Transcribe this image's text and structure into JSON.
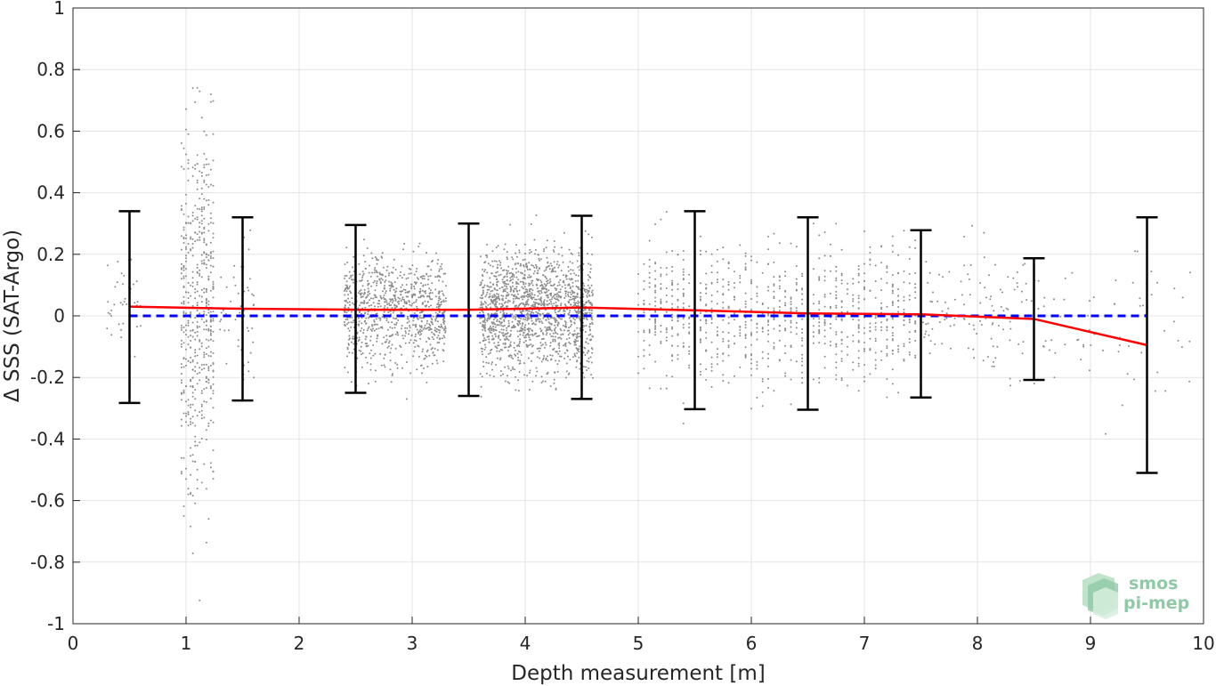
{
  "chart_data": {
    "type": "scatter",
    "title": "",
    "xlabel": "Depth measurement [m]",
    "ylabel": "Δ SSS (SAT-Argo)",
    "xlim": [
      0,
      10
    ],
    "ylim": [
      -1,
      1
    ],
    "xticks": [
      "0",
      "1",
      "2",
      "3",
      "4",
      "5",
      "6",
      "7",
      "8",
      "9",
      "10"
    ],
    "yticks": [
      "-1",
      "-0.8",
      "-0.6",
      "-0.4",
      "-0.2",
      "0",
      "0.2",
      "0.4",
      "0.6",
      "0.8",
      "1"
    ],
    "grid": true,
    "colors": {
      "scatter": "#8c8c8c",
      "mean_line": "#ff0000",
      "zero_line": "#0000ff",
      "errorbar": "#000000",
      "logo": "#8fc9a6"
    },
    "scatter_clusters": [
      {
        "x_range": [
          0.3,
          0.6
        ],
        "y_center": 0.03,
        "y_spread": 0.3,
        "columns": false
      },
      {
        "x_range": [
          0.95,
          1.25
        ],
        "y_center": 0.02,
        "y_spread": 0.95,
        "columns": true
      },
      {
        "x_range": [
          1.3,
          1.6
        ],
        "y_center": 0.02,
        "y_spread": 0.3,
        "columns": false
      },
      {
        "x_range": [
          2.4,
          3.3
        ],
        "y_center": 0.02,
        "y_spread": 0.28,
        "columns": false
      },
      {
        "x_range": [
          3.6,
          4.6
        ],
        "y_center": 0.02,
        "y_spread": 0.3,
        "columns": false
      },
      {
        "x_range": [
          5.0,
          7.5
        ],
        "y_center": 0.01,
        "y_spread": 0.35,
        "columns": true
      },
      {
        "x_range": [
          7.5,
          8.6
        ],
        "y_center": 0.0,
        "y_spread": 0.3,
        "columns": false
      },
      {
        "x_range": [
          8.6,
          9.9
        ],
        "y_center": -0.05,
        "y_spread": 0.4,
        "columns": false
      }
    ],
    "series": [
      {
        "type": "line",
        "x": [
          0.5,
          1.5,
          2.5,
          3.5,
          4.5,
          5.5,
          6.5,
          7.5,
          8.5,
          9.5
        ],
        "values": [
          0.03,
          0.023,
          0.02,
          0.02,
          0.027,
          0.018,
          0.008,
          0.005,
          -0.01,
          -0.095
        ]
      },
      {
        "type": "reference",
        "x": [
          0.5,
          9.5
        ],
        "values": [
          0,
          0
        ]
      },
      {
        "type": "errorbar",
        "x": [
          0.5,
          1.5,
          2.5,
          3.5,
          4.5,
          5.5,
          6.5,
          7.5,
          8.5,
          9.5
        ],
        "upper": [
          0.34,
          0.32,
          0.295,
          0.3,
          0.325,
          0.34,
          0.32,
          0.278,
          0.187,
          0.32
        ],
        "lower": [
          -0.283,
          -0.275,
          -0.25,
          -0.26,
          -0.27,
          -0.303,
          -0.305,
          -0.265,
          -0.208,
          -0.51
        ]
      }
    ]
  },
  "logo": {
    "line1": "smos",
    "line2": "pi-mep"
  }
}
